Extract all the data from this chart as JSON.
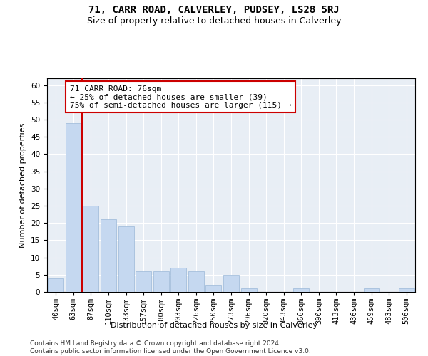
{
  "title": "71, CARR ROAD, CALVERLEY, PUDSEY, LS28 5RJ",
  "subtitle": "Size of property relative to detached houses in Calverley",
  "xlabel": "Distribution of detached houses by size in Calverley",
  "ylabel": "Number of detached properties",
  "categories": [
    "40sqm",
    "63sqm",
    "87sqm",
    "110sqm",
    "133sqm",
    "157sqm",
    "180sqm",
    "203sqm",
    "226sqm",
    "250sqm",
    "273sqm",
    "296sqm",
    "320sqm",
    "343sqm",
    "366sqm",
    "390sqm",
    "413sqm",
    "436sqm",
    "459sqm",
    "483sqm",
    "506sqm"
  ],
  "values": [
    4,
    49,
    25,
    21,
    19,
    6,
    6,
    7,
    6,
    2,
    5,
    1,
    0,
    0,
    1,
    0,
    0,
    0,
    1,
    0,
    1
  ],
  "bar_color": "#c5d8f0",
  "bar_edge_color": "#9ab8d8",
  "vline_x": 1.5,
  "vline_color": "#cc0000",
  "annotation_text": "71 CARR ROAD: 76sqm\n← 25% of detached houses are smaller (39)\n75% of semi-detached houses are larger (115) →",
  "annotation_box_color": "#ffffff",
  "annotation_box_edge_color": "#cc0000",
  "ylim": [
    0,
    62
  ],
  "yticks": [
    0,
    5,
    10,
    15,
    20,
    25,
    30,
    35,
    40,
    45,
    50,
    55,
    60
  ],
  "plot_bg_color": "#e8eef5",
  "footer": "Contains HM Land Registry data © Crown copyright and database right 2024.\nContains public sector information licensed under the Open Government Licence v3.0.",
  "title_fontsize": 10,
  "subtitle_fontsize": 9,
  "xlabel_fontsize": 8,
  "ylabel_fontsize": 8,
  "tick_fontsize": 7.5,
  "annotation_fontsize": 8,
  "footer_fontsize": 6.5
}
